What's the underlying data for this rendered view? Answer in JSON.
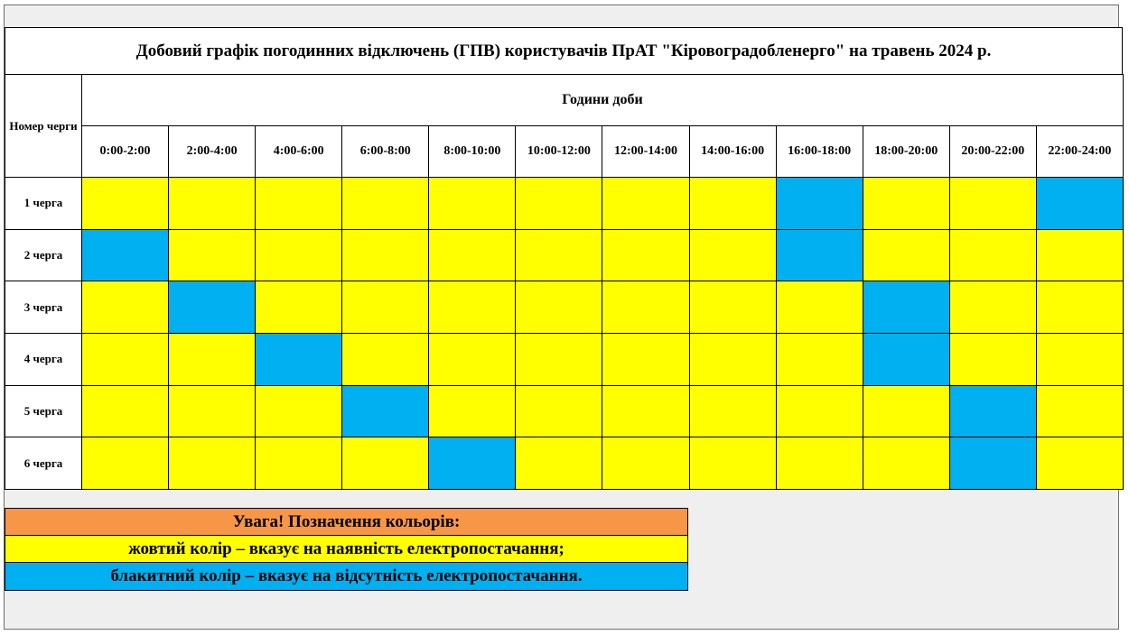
{
  "title": "Добовий графік погодинних відключень (ГПВ) користувачів ПрАТ \"Кіровоградобленерго\" на травень 2024 р.",
  "header": {
    "queue_label": "Номер черги",
    "hours_label": "Години доби"
  },
  "colors": {
    "on": "#ffff00",
    "off": "#00b0f0",
    "legend_title_bg": "#f79646",
    "frame_bg": "#efefef"
  },
  "slots": [
    "0:00-2:00",
    "2:00-4:00",
    "4:00-6:00",
    "6:00-8:00",
    "8:00-10:00",
    "10:00-12:00",
    "12:00-14:00",
    "14:00-16:00",
    "16:00-18:00",
    "18:00-20:00",
    "20:00-22:00",
    "22:00-24:00"
  ],
  "queues": [
    {
      "label": "1 черга",
      "status": [
        "on",
        "on",
        "on",
        "on",
        "on",
        "on",
        "on",
        "on",
        "off",
        "on",
        "on",
        "off"
      ]
    },
    {
      "label": "2 черга",
      "status": [
        "off",
        "on",
        "on",
        "on",
        "on",
        "on",
        "on",
        "on",
        "off",
        "on",
        "on",
        "on"
      ]
    },
    {
      "label": "3 черга",
      "status": [
        "on",
        "off",
        "on",
        "on",
        "on",
        "on",
        "on",
        "on",
        "on",
        "off",
        "on",
        "on"
      ]
    },
    {
      "label": "4 черга",
      "status": [
        "on",
        "on",
        "off",
        "on",
        "on",
        "on",
        "on",
        "on",
        "on",
        "off",
        "on",
        "on"
      ]
    },
    {
      "label": "5 черга",
      "status": [
        "on",
        "on",
        "on",
        "off",
        "on",
        "on",
        "on",
        "on",
        "on",
        "on",
        "off",
        "on"
      ]
    },
    {
      "label": "6 черга",
      "status": [
        "on",
        "on",
        "on",
        "on",
        "off",
        "on",
        "on",
        "on",
        "on",
        "on",
        "off",
        "on"
      ]
    }
  ],
  "legend": {
    "title": "Увага! Позначення кольорів:",
    "yellow_text": "жовтий колір – вказує на наявність електропостачання;",
    "blue_text": "блакитний колір – вказує на відсутність електропостачання."
  }
}
